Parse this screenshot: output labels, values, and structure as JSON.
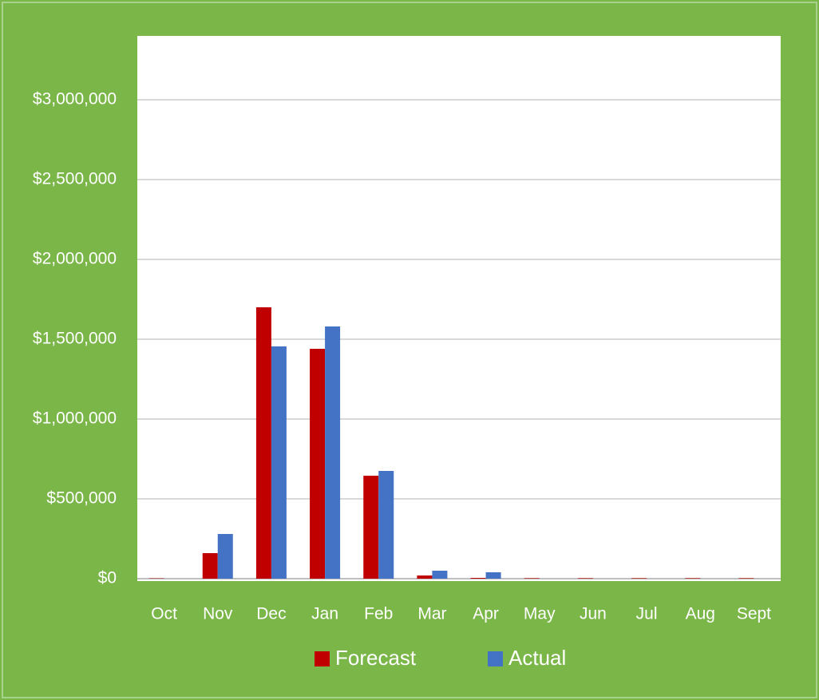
{
  "chart_data": {
    "type": "bar",
    "categories": [
      "Oct",
      "Nov",
      "Dec",
      "Jan",
      "Feb",
      "Mar",
      "Apr",
      "May",
      "Jun",
      "Jul",
      "Aug",
      "Sept"
    ],
    "series": [
      {
        "name": "Forecast",
        "color": "#c00000",
        "values": [
          2000,
          160000,
          1700000,
          1440000,
          645000,
          20000,
          5000,
          3000,
          3000,
          3000,
          3000,
          3000
        ]
      },
      {
        "name": "Actual",
        "color": "#4472c4",
        "values": [
          0,
          280000,
          1455000,
          1580000,
          675000,
          50000,
          40000,
          0,
          0,
          0,
          0,
          0
        ]
      }
    ],
    "ylim": [
      0,
      3400000
    ],
    "yticks": [
      {
        "value": 0,
        "label": "$0"
      },
      {
        "value": 500000,
        "label": "$500,000"
      },
      {
        "value": 1000000,
        "label": "$1,000,000"
      },
      {
        "value": 1500000,
        "label": "$1,500,000"
      },
      {
        "value": 2000000,
        "label": "$2,000,000"
      },
      {
        "value": 2500000,
        "label": "$2,500,000"
      },
      {
        "value": 3000000,
        "label": "$3,000,000"
      }
    ],
    "grid": true,
    "legend": "bottom"
  }
}
